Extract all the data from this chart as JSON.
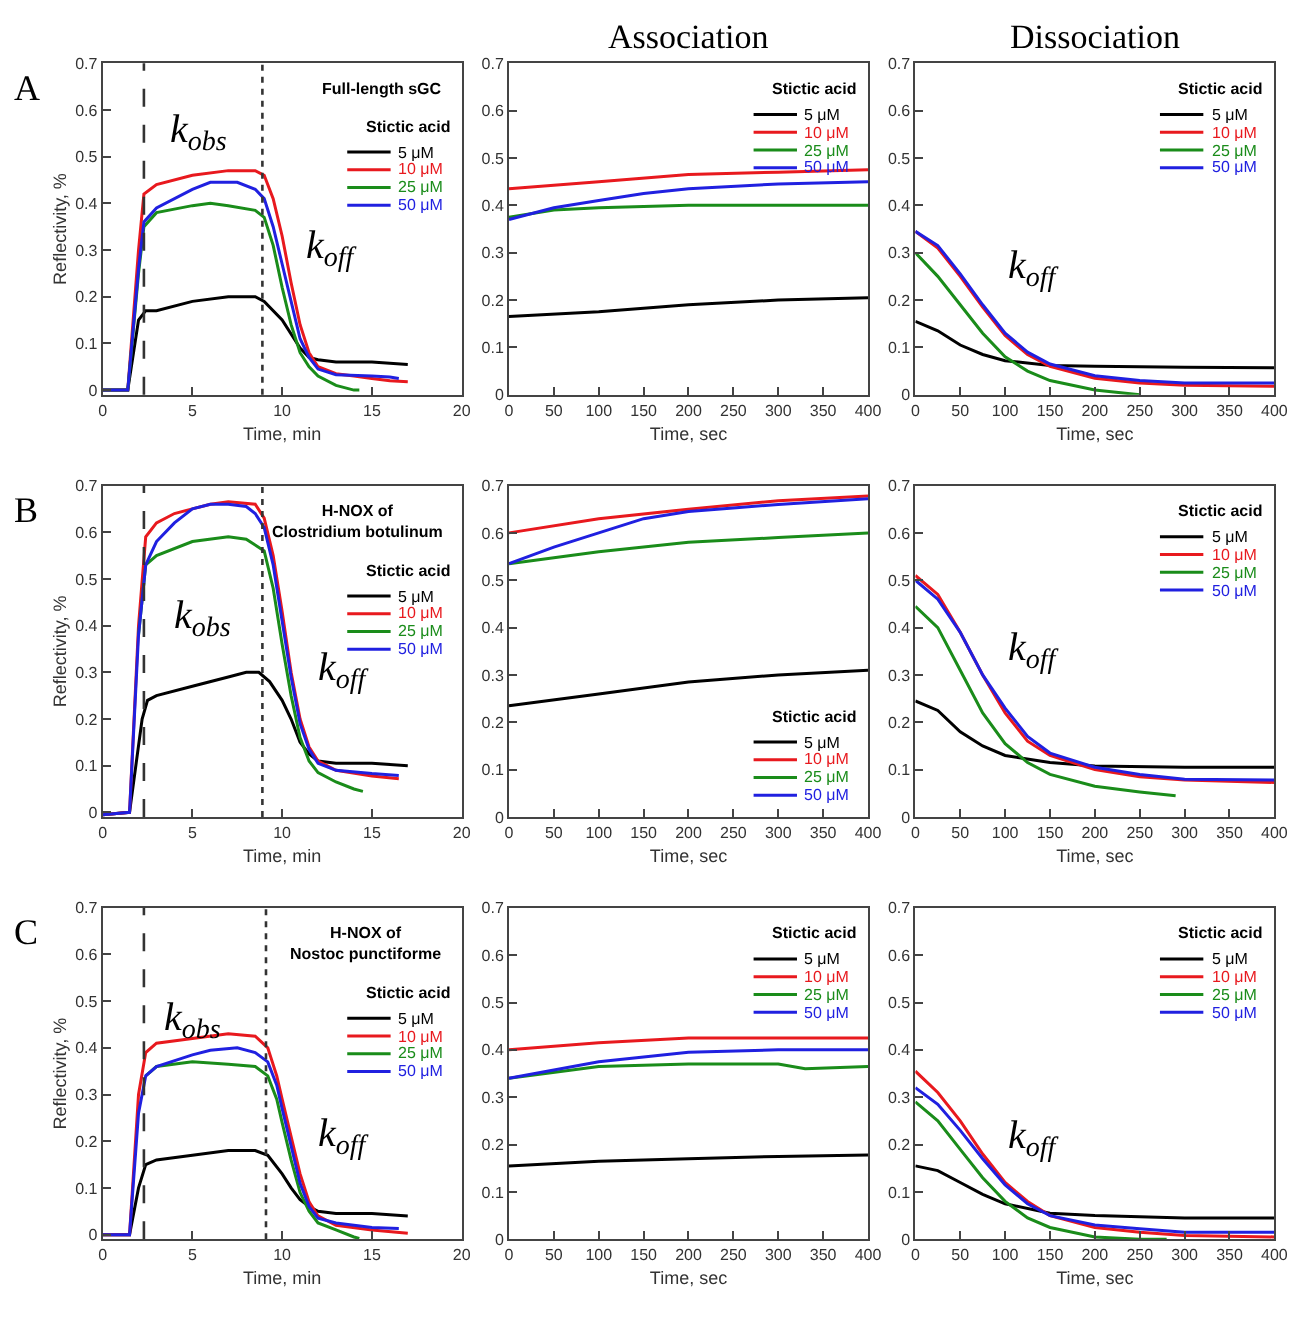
{
  "chart_data": [
    {
      "type": "line",
      "subtitle": "Full-length sGC",
      "xlabel": "Time, min",
      "ylabel": "Reflectivity, %",
      "legend_title": "Stictic acid",
      "legend": "top right",
      "xlim": [
        0,
        20
      ],
      "xticks": [
        0,
        5,
        10,
        15,
        20
      ],
      "ylim": [
        -0.01,
        0.7
      ],
      "yticks": [
        0,
        0.1,
        0.2,
        0.3,
        0.4,
        0.5,
        0.6,
        0.7
      ],
      "annotations": [
        "A",
        "k$_{obs}$",
        "k$_{off}$"
      ],
      "ref_lines": [
        {
          "axis": "x",
          "value": 2.3,
          "line_style": "dashed",
          "color": "#333333"
        },
        {
          "axis": "x",
          "value": 8.9,
          "line_style": "dotted",
          "color": "#333333"
        }
      ],
      "series": [
        {
          "name": "5 μM",
          "color": "#000000",
          "x": [
            0,
            1.4,
            2.0,
            2.4,
            3,
            5,
            7,
            8.5,
            9,
            10,
            11,
            11.5,
            12,
            13,
            15,
            17
          ],
          "values": [
            0,
            0,
            0.15,
            0.17,
            0.17,
            0.19,
            0.2,
            0.2,
            0.19,
            0.15,
            0.09,
            0.07,
            0.065,
            0.06,
            0.06,
            0.055
          ]
        },
        {
          "name": "10 μM",
          "color": "#e8191e",
          "x": [
            0,
            1.4,
            2.0,
            2.3,
            3,
            5,
            7,
            8.5,
            9,
            9.5,
            10,
            10.5,
            11,
            11.5,
            12,
            13,
            14,
            15,
            16,
            17
          ],
          "values": [
            0,
            0,
            0.3,
            0.42,
            0.44,
            0.46,
            0.47,
            0.47,
            0.46,
            0.41,
            0.33,
            0.23,
            0.14,
            0.08,
            0.05,
            0.035,
            0.03,
            0.025,
            0.02,
            0.018
          ]
        },
        {
          "name": "25 μM",
          "color": "#1a8c1a",
          "x": [
            0,
            1.4,
            2.0,
            2.3,
            3,
            5,
            6,
            7,
            8.5,
            9,
            9.5,
            10,
            10.5,
            11,
            11.5,
            12,
            13,
            14,
            14.3
          ],
          "values": [
            0,
            0,
            0.25,
            0.35,
            0.38,
            0.395,
            0.4,
            0.395,
            0.385,
            0.37,
            0.31,
            0.22,
            0.14,
            0.08,
            0.05,
            0.03,
            0.01,
            0,
            0
          ]
        },
        {
          "name": "50 μM",
          "color": "#2020e0",
          "x": [
            0,
            1.4,
            2.0,
            2.3,
            3,
            5,
            6,
            7.5,
            8.5,
            9,
            9.5,
            10,
            10.5,
            11,
            11.5,
            12,
            13,
            15,
            16,
            16.5
          ],
          "values": [
            0,
            0,
            0.26,
            0.36,
            0.39,
            0.43,
            0.445,
            0.445,
            0.43,
            0.41,
            0.35,
            0.27,
            0.19,
            0.11,
            0.07,
            0.045,
            0.033,
            0.03,
            0.028,
            0.025
          ]
        }
      ]
    },
    {
      "type": "line",
      "title": "Association",
      "xlabel": "Time, sec",
      "legend_title": "Stictic acid",
      "legend": "top right",
      "xlim": [
        0,
        400
      ],
      "xticks": [
        0,
        50,
        100,
        150,
        200,
        250,
        300,
        350,
        400
      ],
      "ylim": [
        0,
        0.7
      ],
      "yticks": [
        0,
        0.1,
        0.2,
        0.3,
        0.4,
        0.5,
        0.6,
        0.7
      ],
      "series": [
        {
          "name": "5 μM",
          "color": "#000000",
          "x": [
            0,
            100,
            200,
            300,
            400
          ],
          "values": [
            0.165,
            0.175,
            0.19,
            0.2,
            0.205
          ]
        },
        {
          "name": "10 μM",
          "color": "#e8191e",
          "x": [
            0,
            100,
            200,
            300,
            400
          ],
          "values": [
            0.435,
            0.45,
            0.465,
            0.47,
            0.475
          ]
        },
        {
          "name": "25 μM",
          "color": "#1a8c1a",
          "x": [
            0,
            50,
            100,
            200,
            300,
            400
          ],
          "values": [
            0.375,
            0.39,
            0.395,
            0.4,
            0.4,
            0.4
          ]
        },
        {
          "name": "50 μM",
          "color": "#2020e0",
          "x": [
            0,
            50,
            100,
            150,
            200,
            300,
            400
          ],
          "values": [
            0.37,
            0.395,
            0.41,
            0.425,
            0.435,
            0.445,
            0.45
          ]
        }
      ]
    },
    {
      "type": "line",
      "title": "Dissociation",
      "xlabel": "Time, sec",
      "legend_title": "Stictic acid",
      "legend": "top right",
      "xlim": [
        0,
        400
      ],
      "xticks": [
        0,
        50,
        100,
        150,
        200,
        250,
        300,
        350,
        400
      ],
      "ylim": [
        0,
        0.7
      ],
      "yticks": [
        0,
        0.1,
        0.2,
        0.3,
        0.4,
        0.5,
        0.6,
        0.7
      ],
      "annotations": [
        "k$_{off}$"
      ],
      "series": [
        {
          "name": "5 μM",
          "color": "#000000",
          "x": [
            0,
            25,
            50,
            75,
            100,
            150,
            200,
            300,
            400
          ],
          "values": [
            0.155,
            0.135,
            0.105,
            0.085,
            0.072,
            0.062,
            0.06,
            0.058,
            0.057
          ]
        },
        {
          "name": "10 μM",
          "color": "#e8191e",
          "x": [
            0,
            25,
            50,
            75,
            100,
            125,
            150,
            200,
            250,
            300,
            400
          ],
          "values": [
            0.345,
            0.31,
            0.25,
            0.185,
            0.125,
            0.085,
            0.06,
            0.035,
            0.025,
            0.02,
            0.018
          ]
        },
        {
          "name": "25 μM",
          "color": "#1a8c1a",
          "x": [
            0,
            25,
            50,
            75,
            100,
            125,
            150,
            200,
            250
          ],
          "values": [
            0.3,
            0.25,
            0.19,
            0.13,
            0.08,
            0.05,
            0.03,
            0.01,
            0
          ]
        },
        {
          "name": "50 μM",
          "color": "#2020e0",
          "x": [
            0,
            25,
            50,
            75,
            100,
            125,
            150,
            200,
            250,
            300,
            400
          ],
          "values": [
            0.345,
            0.315,
            0.255,
            0.19,
            0.13,
            0.09,
            0.065,
            0.04,
            0.03,
            0.025,
            0.025
          ]
        }
      ]
    },
    {
      "type": "line",
      "subtitle": "H-NOX of\nClostridium botulinum",
      "xlabel": "Time, min",
      "ylabel": "Reflectivity, %",
      "legend_title": "Stictic acid",
      "legend": "top right",
      "xlim": [
        0,
        20
      ],
      "xticks": [
        0,
        5,
        10,
        15,
        20
      ],
      "ylim": [
        -0.01,
        0.7
      ],
      "yticks": [
        0,
        0.1,
        0.2,
        0.3,
        0.4,
        0.5,
        0.6,
        0.7
      ],
      "annotations": [
        "B",
        "k$_{obs}$",
        "k$_{off}$"
      ],
      "ref_lines": [
        {
          "axis": "x",
          "value": 2.3,
          "line_style": "dashed",
          "color": "#333333"
        },
        {
          "axis": "x",
          "value": 8.9,
          "line_style": "dotted",
          "color": "#333333"
        }
      ],
      "series": [
        {
          "name": "5 μM",
          "color": "#000000",
          "x": [
            0,
            1.5,
            2.2,
            2.5,
            3,
            5,
            7,
            8,
            8.7,
            9.3,
            10,
            10.5,
            11,
            11.5,
            12,
            13,
            15,
            17
          ],
          "values": [
            -0.005,
            0,
            0.2,
            0.24,
            0.25,
            0.27,
            0.29,
            0.3,
            0.3,
            0.28,
            0.24,
            0.2,
            0.15,
            0.125,
            0.11,
            0.105,
            0.105,
            0.1
          ]
        },
        {
          "name": "10 μM",
          "color": "#e8191e",
          "x": [
            0,
            1.5,
            2.0,
            2.4,
            3,
            4,
            5,
            6,
            7,
            8.5,
            9,
            9.5,
            10,
            10.5,
            11,
            11.5,
            12,
            13,
            15,
            16.5
          ],
          "values": [
            -0.005,
            0,
            0.4,
            0.59,
            0.62,
            0.64,
            0.65,
            0.66,
            0.665,
            0.66,
            0.63,
            0.55,
            0.43,
            0.3,
            0.2,
            0.14,
            0.11,
            0.09,
            0.078,
            0.072
          ]
        },
        {
          "name": "25 μM",
          "color": "#1a8c1a",
          "x": [
            2.0,
            2.4,
            3,
            5,
            7,
            8,
            9,
            9.5,
            10,
            10.5,
            11,
            11.5,
            12,
            13,
            14,
            14.5
          ],
          "values": [
            0.38,
            0.53,
            0.55,
            0.58,
            0.59,
            0.585,
            0.56,
            0.48,
            0.36,
            0.25,
            0.16,
            0.11,
            0.085,
            0.065,
            0.05,
            0.045
          ]
        },
        {
          "name": "50 μM",
          "color": "#2020e0",
          "x": [
            0,
            1.5,
            2.0,
            2.4,
            3,
            4,
            5,
            6,
            7,
            8,
            8.5,
            9,
            9.5,
            10,
            10.5,
            11,
            11.5,
            12,
            13,
            15,
            16.5
          ],
          "values": [
            -0.005,
            0,
            0.38,
            0.53,
            0.58,
            0.62,
            0.65,
            0.66,
            0.66,
            0.655,
            0.64,
            0.61,
            0.53,
            0.41,
            0.29,
            0.19,
            0.135,
            0.105,
            0.09,
            0.083,
            0.079
          ]
        }
      ]
    },
    {
      "type": "line",
      "xlabel": "Time, sec",
      "legend_title": "Stictic acid",
      "legend": "bottom right",
      "xlim": [
        0,
        400
      ],
      "xticks": [
        0,
        50,
        100,
        150,
        200,
        250,
        300,
        350,
        400
      ],
      "ylim": [
        0,
        0.7
      ],
      "yticks": [
        0,
        0.1,
        0.2,
        0.3,
        0.4,
        0.5,
        0.6,
        0.7
      ],
      "series": [
        {
          "name": "5 μM",
          "color": "#000000",
          "x": [
            0,
            100,
            200,
            300,
            400
          ],
          "values": [
            0.235,
            0.26,
            0.285,
            0.3,
            0.31
          ]
        },
        {
          "name": "10 μM",
          "color": "#e8191e",
          "x": [
            0,
            100,
            200,
            300,
            400
          ],
          "values": [
            0.6,
            0.63,
            0.65,
            0.668,
            0.678
          ]
        },
        {
          "name": "25 μM",
          "color": "#1a8c1a",
          "x": [
            0,
            100,
            200,
            300,
            400
          ],
          "values": [
            0.535,
            0.56,
            0.58,
            0.59,
            0.6
          ]
        },
        {
          "name": "50 μM",
          "color": "#2020e0",
          "x": [
            0,
            50,
            100,
            150,
            200,
            300,
            400
          ],
          "values": [
            0.535,
            0.57,
            0.6,
            0.63,
            0.645,
            0.66,
            0.672
          ]
        }
      ]
    },
    {
      "type": "line",
      "xlabel": "Time, sec",
      "legend_title": "Stictic acid",
      "legend": "top right",
      "xlim": [
        0,
        400
      ],
      "xticks": [
        0,
        50,
        100,
        150,
        200,
        250,
        300,
        350,
        400
      ],
      "ylim": [
        0,
        0.7
      ],
      "yticks": [
        0,
        0.1,
        0.2,
        0.3,
        0.4,
        0.5,
        0.6,
        0.7
      ],
      "annotations": [
        "k$_{off}$"
      ],
      "series": [
        {
          "name": "5 μM",
          "color": "#000000",
          "x": [
            0,
            25,
            50,
            75,
            100,
            150,
            200,
            300,
            400
          ],
          "values": [
            0.245,
            0.225,
            0.18,
            0.15,
            0.13,
            0.115,
            0.108,
            0.105,
            0.105
          ]
        },
        {
          "name": "10 μM",
          "color": "#e8191e",
          "x": [
            0,
            25,
            50,
            75,
            100,
            125,
            150,
            200,
            250,
            300,
            400
          ],
          "values": [
            0.51,
            0.47,
            0.39,
            0.3,
            0.22,
            0.16,
            0.13,
            0.1,
            0.085,
            0.078,
            0.073
          ]
        },
        {
          "name": "25 μM",
          "color": "#1a8c1a",
          "x": [
            0,
            25,
            50,
            75,
            100,
            125,
            150,
            200,
            250,
            290
          ],
          "values": [
            0.445,
            0.4,
            0.31,
            0.22,
            0.155,
            0.115,
            0.09,
            0.065,
            0.053,
            0.045
          ]
        },
        {
          "name": "50 μM",
          "color": "#2020e0",
          "x": [
            0,
            25,
            50,
            75,
            100,
            125,
            150,
            200,
            250,
            300,
            400
          ],
          "values": [
            0.5,
            0.46,
            0.39,
            0.3,
            0.23,
            0.17,
            0.135,
            0.105,
            0.09,
            0.08,
            0.078
          ]
        }
      ]
    },
    {
      "type": "line",
      "subtitle": "H-NOX of\nNostoc punctiforme",
      "xlabel": "Time, min",
      "ylabel": "Reflectivity, %",
      "legend_title": "Stictic acid",
      "legend": "top right",
      "xlim": [
        0,
        20
      ],
      "xticks": [
        0,
        5,
        10,
        15,
        20
      ],
      "ylim": [
        -0.01,
        0.7
      ],
      "yticks": [
        0,
        0.1,
        0.2,
        0.3,
        0.4,
        0.5,
        0.6,
        0.7
      ],
      "annotations": [
        "C",
        "k$_{obs}$",
        "k$_{off}$"
      ],
      "ref_lines": [
        {
          "axis": "x",
          "value": 2.3,
          "line_style": "dashed",
          "color": "#333333"
        },
        {
          "axis": "x",
          "value": 9.1,
          "line_style": "dotted",
          "color": "#333333"
        }
      ],
      "series": [
        {
          "name": "5 μM",
          "color": "#000000",
          "x": [
            0,
            1.5,
            2.0,
            2.4,
            3,
            5,
            7,
            8.5,
            9.2,
            10,
            10.5,
            11,
            11.5,
            12,
            13,
            15,
            17
          ],
          "values": [
            0,
            0,
            0.1,
            0.15,
            0.16,
            0.17,
            0.18,
            0.18,
            0.17,
            0.13,
            0.1,
            0.075,
            0.06,
            0.05,
            0.045,
            0.045,
            0.04
          ]
        },
        {
          "name": "10 μM",
          "color": "#e8191e",
          "x": [
            0,
            1.5,
            2.0,
            2.4,
            3,
            5,
            7,
            8.5,
            9.2,
            9.7,
            10,
            10.5,
            11,
            11.5,
            12,
            13,
            15,
            17
          ],
          "values": [
            0,
            0,
            0.3,
            0.39,
            0.41,
            0.42,
            0.43,
            0.425,
            0.4,
            0.34,
            0.29,
            0.21,
            0.13,
            0.07,
            0.04,
            0.02,
            0.01,
            0.003
          ]
        },
        {
          "name": "25 μM",
          "color": "#1a8c1a",
          "x": [
            2.4,
            3,
            5,
            7,
            8.5,
            9.2,
            9.7,
            10,
            10.5,
            11,
            11.5,
            12,
            13,
            14,
            14.3
          ],
          "values": [
            0.34,
            0.36,
            0.37,
            0.365,
            0.36,
            0.34,
            0.29,
            0.24,
            0.16,
            0.09,
            0.05,
            0.025,
            0.01,
            -0.005,
            -0.008
          ]
        },
        {
          "name": "50 μM",
          "color": "#2020e0",
          "x": [
            0,
            1.5,
            2.0,
            2.4,
            3,
            5,
            6,
            7.5,
            8.5,
            9.2,
            9.7,
            10,
            10.5,
            11,
            11.5,
            12,
            13,
            15,
            16.5
          ],
          "values": [
            0,
            0,
            0.26,
            0.34,
            0.36,
            0.385,
            0.395,
            0.4,
            0.39,
            0.37,
            0.32,
            0.27,
            0.19,
            0.11,
            0.06,
            0.035,
            0.025,
            0.015,
            0.013
          ]
        }
      ]
    },
    {
      "type": "line",
      "xlabel": "Time, sec",
      "legend_title": "Stictic acid",
      "legend": "top right",
      "xlim": [
        0,
        400
      ],
      "xticks": [
        0,
        50,
        100,
        150,
        200,
        250,
        300,
        350,
        400
      ],
      "ylim": [
        0,
        0.7
      ],
      "yticks": [
        0,
        0.1,
        0.2,
        0.3,
        0.4,
        0.5,
        0.6,
        0.7
      ],
      "series": [
        {
          "name": "5 μM",
          "color": "#000000",
          "x": [
            0,
            100,
            200,
            300,
            400
          ],
          "values": [
            0.155,
            0.165,
            0.17,
            0.175,
            0.178
          ]
        },
        {
          "name": "10 μM",
          "color": "#e8191e",
          "x": [
            0,
            100,
            200,
            300,
            400
          ],
          "values": [
            0.4,
            0.415,
            0.425,
            0.425,
            0.425
          ]
        },
        {
          "name": "25 μM",
          "color": "#1a8c1a",
          "x": [
            0,
            100,
            200,
            300,
            330,
            400
          ],
          "values": [
            0.34,
            0.365,
            0.37,
            0.37,
            0.36,
            0.365
          ]
        },
        {
          "name": "50 μM",
          "color": "#2020e0",
          "x": [
            0,
            100,
            200,
            300,
            400
          ],
          "values": [
            0.34,
            0.375,
            0.395,
            0.4,
            0.4
          ]
        }
      ]
    },
    {
      "type": "line",
      "xlabel": "Time, sec",
      "legend_title": "Stictic acid",
      "legend": "top right",
      "xlim": [
        0,
        400
      ],
      "xticks": [
        0,
        50,
        100,
        150,
        200,
        250,
        300,
        350,
        400
      ],
      "ylim": [
        0,
        0.7
      ],
      "yticks": [
        0,
        0.1,
        0.2,
        0.3,
        0.4,
        0.5,
        0.6,
        0.7
      ],
      "annotations": [
        "k$_{off}$"
      ],
      "series": [
        {
          "name": "5 μM",
          "color": "#000000",
          "x": [
            0,
            25,
            50,
            75,
            100,
            150,
            200,
            300,
            400
          ],
          "values": [
            0.155,
            0.145,
            0.12,
            0.095,
            0.075,
            0.055,
            0.05,
            0.045,
            0.045
          ]
        },
        {
          "name": "10 μM",
          "color": "#e8191e",
          "x": [
            0,
            25,
            50,
            75,
            100,
            125,
            150,
            200,
            250,
            300,
            400
          ],
          "values": [
            0.355,
            0.31,
            0.25,
            0.18,
            0.12,
            0.08,
            0.05,
            0.025,
            0.015,
            0.008,
            0.005
          ]
        },
        {
          "name": "25 μM",
          "color": "#1a8c1a",
          "x": [
            0,
            25,
            50,
            75,
            100,
            125,
            150,
            200,
            250,
            280
          ],
          "values": [
            0.29,
            0.25,
            0.19,
            0.13,
            0.08,
            0.045,
            0.025,
            0.005,
            0,
            0
          ]
        },
        {
          "name": "50 μM",
          "color": "#2020e0",
          "x": [
            0,
            25,
            50,
            75,
            100,
            125,
            150,
            200,
            250,
            300,
            400
          ],
          "values": [
            0.32,
            0.285,
            0.23,
            0.17,
            0.115,
            0.075,
            0.05,
            0.03,
            0.022,
            0.015,
            0.015
          ]
        }
      ]
    }
  ]
}
